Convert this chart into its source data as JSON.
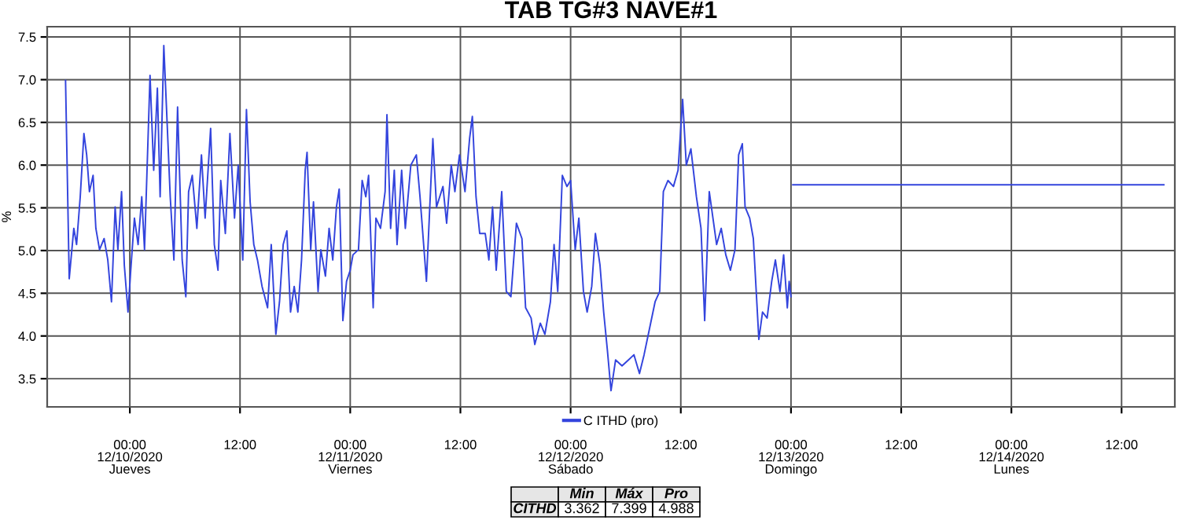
{
  "chart_data": {
    "type": "line",
    "title": "TAB TG#3 NAVE#1",
    "ylabel": "%",
    "x": [
      "2020-12-09T17:00",
      "2020-12-09T17:24",
      "2020-12-09T17:54",
      "2020-12-09T18:12",
      "2020-12-09T18:36",
      "2020-12-09T19:00",
      "2020-12-09T19:18",
      "2020-12-09T19:36",
      "2020-12-09T20:00",
      "2020-12-09T20:18",
      "2020-12-09T20:42",
      "2020-12-09T21:12",
      "2020-12-09T21:36",
      "2020-12-09T22:00",
      "2020-12-09T22:24",
      "2020-12-09T22:42",
      "2020-12-09T23:06",
      "2020-12-09T23:24",
      "2020-12-09T23:48",
      "2020-12-10T00:06",
      "2020-12-10T00:30",
      "2020-12-10T00:54",
      "2020-12-10T01:18",
      "2020-12-10T01:36",
      "2020-12-10T02:12",
      "2020-12-10T02:36",
      "2020-12-10T03:00",
      "2020-12-10T03:18",
      "2020-12-10T03:42",
      "2020-12-10T04:00",
      "2020-12-10T04:24",
      "2020-12-10T04:48",
      "2020-12-10T05:12",
      "2020-12-10T05:42",
      "2020-12-10T06:06",
      "2020-12-10T06:24",
      "2020-12-10T06:48",
      "2020-12-10T07:18",
      "2020-12-10T07:48",
      "2020-12-10T08:12",
      "2020-12-10T08:48",
      "2020-12-10T09:12",
      "2020-12-10T09:36",
      "2020-12-10T09:54",
      "2020-12-10T10:24",
      "2020-12-10T10:54",
      "2020-12-10T11:24",
      "2020-12-10T11:48",
      "2020-12-10T12:18",
      "2020-12-10T12:42",
      "2020-12-10T13:06",
      "2020-12-10T13:30",
      "2020-12-10T13:54",
      "2020-12-10T14:24",
      "2020-12-10T15:00",
      "2020-12-10T15:24",
      "2020-12-10T15:54",
      "2020-12-10T16:18",
      "2020-12-10T16:42",
      "2020-12-10T17:06",
      "2020-12-10T17:30",
      "2020-12-10T17:54",
      "2020-12-10T18:18",
      "2020-12-10T18:42",
      "2020-12-10T19:06",
      "2020-12-10T19:18",
      "2020-12-10T19:42",
      "2020-12-10T20:00",
      "2020-12-10T20:30",
      "2020-12-10T20:48",
      "2020-12-10T21:18",
      "2020-12-10T21:42",
      "2020-12-10T22:06",
      "2020-12-10T22:30",
      "2020-12-10T22:48",
      "2020-12-10T23:12",
      "2020-12-10T23:36",
      "2020-12-11T00:00",
      "2020-12-11T00:18",
      "2020-12-11T00:54",
      "2020-12-11T01:18",
      "2020-12-11T01:42",
      "2020-12-11T02:00",
      "2020-12-11T02:30",
      "2020-12-11T02:48",
      "2020-12-11T03:18",
      "2020-12-11T03:48",
      "2020-12-11T04:00",
      "2020-12-11T04:24",
      "2020-12-11T04:48",
      "2020-12-11T05:06",
      "2020-12-11T05:36",
      "2020-12-11T06:00",
      "2020-12-11T06:36",
      "2020-12-11T07:12",
      "2020-12-11T07:36",
      "2020-12-11T08:18",
      "2020-12-11T09:00",
      "2020-12-11T09:24",
      "2020-12-11T10:06",
      "2020-12-11T10:30",
      "2020-12-11T11:00",
      "2020-12-11T11:24",
      "2020-12-11T11:54",
      "2020-12-11T12:30",
      "2020-12-11T13:00",
      "2020-12-11T13:18",
      "2020-12-11T13:42",
      "2020-12-11T14:06",
      "2020-12-11T14:42",
      "2020-12-11T15:06",
      "2020-12-11T15:30",
      "2020-12-11T15:54",
      "2020-12-11T16:30",
      "2020-12-11T17:00",
      "2020-12-11T17:30",
      "2020-12-11T18:06",
      "2020-12-11T18:42",
      "2020-12-11T19:06",
      "2020-12-11T19:42",
      "2020-12-11T20:06",
      "2020-12-11T20:42",
      "2020-12-11T21:12",
      "2020-12-11T21:48",
      "2020-12-11T22:12",
      "2020-12-11T22:36",
      "2020-12-11T23:06",
      "2020-12-11T23:36",
      "2020-12-12T00:00",
      "2020-12-12T00:30",
      "2020-12-12T00:54",
      "2020-12-12T01:24",
      "2020-12-12T01:48",
      "2020-12-12T02:18",
      "2020-12-12T02:42",
      "2020-12-12T03:12",
      "2020-12-12T03:36",
      "2020-12-12T04:00",
      "2020-12-12T04:24",
      "2020-12-12T04:54",
      "2020-12-12T05:36",
      "2020-12-12T06:18",
      "2020-12-12T06:54",
      "2020-12-12T07:30",
      "2020-12-12T08:00",
      "2020-12-12T08:36",
      "2020-12-12T09:12",
      "2020-12-12T09:42",
      "2020-12-12T10:06",
      "2020-12-12T10:36",
      "2020-12-12T11:12",
      "2020-12-12T11:42",
      "2020-12-12T12:12",
      "2020-12-12T12:36",
      "2020-12-12T13:06",
      "2020-12-12T13:42",
      "2020-12-12T14:12",
      "2020-12-12T14:36",
      "2020-12-12T15:06",
      "2020-12-12T15:30",
      "2020-12-12T15:54",
      "2020-12-12T16:24",
      "2020-12-12T16:54",
      "2020-12-12T17:24",
      "2020-12-12T17:54",
      "2020-12-12T18:18",
      "2020-12-12T18:42",
      "2020-12-12T19:00",
      "2020-12-12T19:30",
      "2020-12-12T19:54",
      "2020-12-12T20:30",
      "2020-12-12T20:54",
      "2020-12-12T21:24",
      "2020-12-12T21:54",
      "2020-12-12T22:18",
      "2020-12-12T22:48",
      "2020-12-12T23:12",
      "2020-12-12T23:36",
      "2020-12-12T23:48",
      "2020-12-13T00:00",
      "2020-12-13T00:06",
      "2020-12-13T00:12",
      "2020-12-14T16:36"
    ],
    "series": [
      {
        "name": "C ITHD (pro)",
        "color": "#3344dd",
        "values": [
          6.99,
          4.67,
          5.26,
          5.07,
          5.63,
          6.37,
          6.12,
          5.69,
          5.88,
          5.26,
          5.01,
          5.14,
          4.89,
          4.4,
          5.51,
          5.01,
          5.69,
          4.83,
          4.28,
          4.77,
          5.38,
          5.07,
          5.63,
          5.01,
          7.05,
          5.94,
          6.9,
          5.63,
          7.4,
          6.65,
          5.63,
          4.89,
          6.68,
          4.89,
          4.46,
          5.69,
          5.88,
          5.26,
          6.12,
          5.38,
          6.43,
          5.07,
          4.77,
          5.82,
          5.2,
          6.37,
          5.38,
          6.0,
          4.89,
          6.65,
          5.57,
          5.07,
          4.89,
          4.58,
          4.33,
          5.07,
          4.02,
          4.4,
          5.07,
          5.23,
          4.28,
          4.58,
          4.28,
          4.89,
          5.94,
          6.15,
          5.01,
          5.57,
          4.52,
          5.01,
          4.7,
          5.26,
          4.89,
          5.51,
          5.72,
          4.18,
          4.64,
          4.77,
          4.95,
          5.01,
          5.82,
          5.63,
          5.88,
          4.33,
          5.38,
          5.26,
          5.69,
          6.59,
          5.26,
          5.94,
          5.07,
          5.94,
          5.26,
          6.0,
          6.12,
          5.63,
          4.64,
          6.31,
          5.51,
          5.75,
          5.32,
          6.0,
          5.69,
          6.12,
          5.69,
          6.31,
          6.57,
          5.63,
          5.2,
          5.2,
          4.89,
          5.51,
          4.77,
          5.69,
          4.52,
          4.46,
          5.32,
          5.14,
          4.33,
          4.21,
          3.9,
          4.15,
          4.02,
          4.4,
          5.07,
          4.52,
          5.88,
          5.75,
          5.82,
          5.01,
          5.38,
          4.52,
          4.28,
          4.58,
          5.2,
          4.83,
          4.28,
          3.84,
          3.36,
          3.72,
          3.65,
          3.72,
          3.78,
          3.56,
          3.78,
          4.09,
          4.4,
          4.52,
          5.69,
          5.82,
          5.75,
          5.94,
          6.77,
          6.0,
          6.19,
          5.63,
          5.26,
          4.18,
          5.69,
          5.38,
          5.07,
          5.26,
          4.95,
          4.77,
          5.01,
          6.12,
          6.25,
          5.51,
          5.38,
          5.14,
          3.96,
          4.28,
          4.21,
          4.64,
          4.89,
          4.52,
          4.95,
          4.33,
          4.64,
          4.46,
          null,
          5.77,
          5.77
        ]
      }
    ],
    "xlim": [
      "2020-12-09T15:00",
      "2020-12-14T17:48"
    ],
    "xticks": [
      {
        "value": "2020-12-10T00:00",
        "label": "00:00\n12/10/2020\nJueves"
      },
      {
        "value": "2020-12-10T12:00",
        "label": "12:00"
      },
      {
        "value": "2020-12-11T00:00",
        "label": "00:00\n12/11/2020\nViernes"
      },
      {
        "value": "2020-12-11T12:00",
        "label": "12:00"
      },
      {
        "value": "2020-12-12T00:00",
        "label": "00:00\n12/12/2020\nSábado"
      },
      {
        "value": "2020-12-12T12:00",
        "label": "12:00"
      },
      {
        "value": "2020-12-13T00:00",
        "label": "00:00\n12/13/2020\nDomingo"
      },
      {
        "value": "2020-12-13T12:00",
        "label": "12:00"
      },
      {
        "value": "2020-12-14T00:00",
        "label": "00:00\n12/14/2020\nLunes"
      },
      {
        "value": "2020-12-14T12:00",
        "label": "12:00"
      }
    ],
    "ylim": [
      3.17,
      7.62
    ],
    "yticks": [
      {
        "value": 3.5,
        "label": "3.5"
      },
      {
        "value": 4,
        "label": "4.0"
      },
      {
        "value": 4.5,
        "label": "4.5"
      },
      {
        "value": 5,
        "label": "5.0"
      },
      {
        "value": 5.5,
        "label": "5.5"
      },
      {
        "value": 6,
        "label": "6.0"
      },
      {
        "value": 6.5,
        "label": "6.5"
      },
      {
        "value": 7,
        "label": "7.0"
      },
      {
        "value": 7.5,
        "label": "7.5"
      }
    ],
    "grid": true,
    "legend": "bottom",
    "line_style": "solid",
    "marker": "none",
    "annotations": [
      "Min",
      "Máx",
      "Pro",
      "CITHD",
      "3.362",
      "7.399",
      "4.988"
    ]
  }
}
